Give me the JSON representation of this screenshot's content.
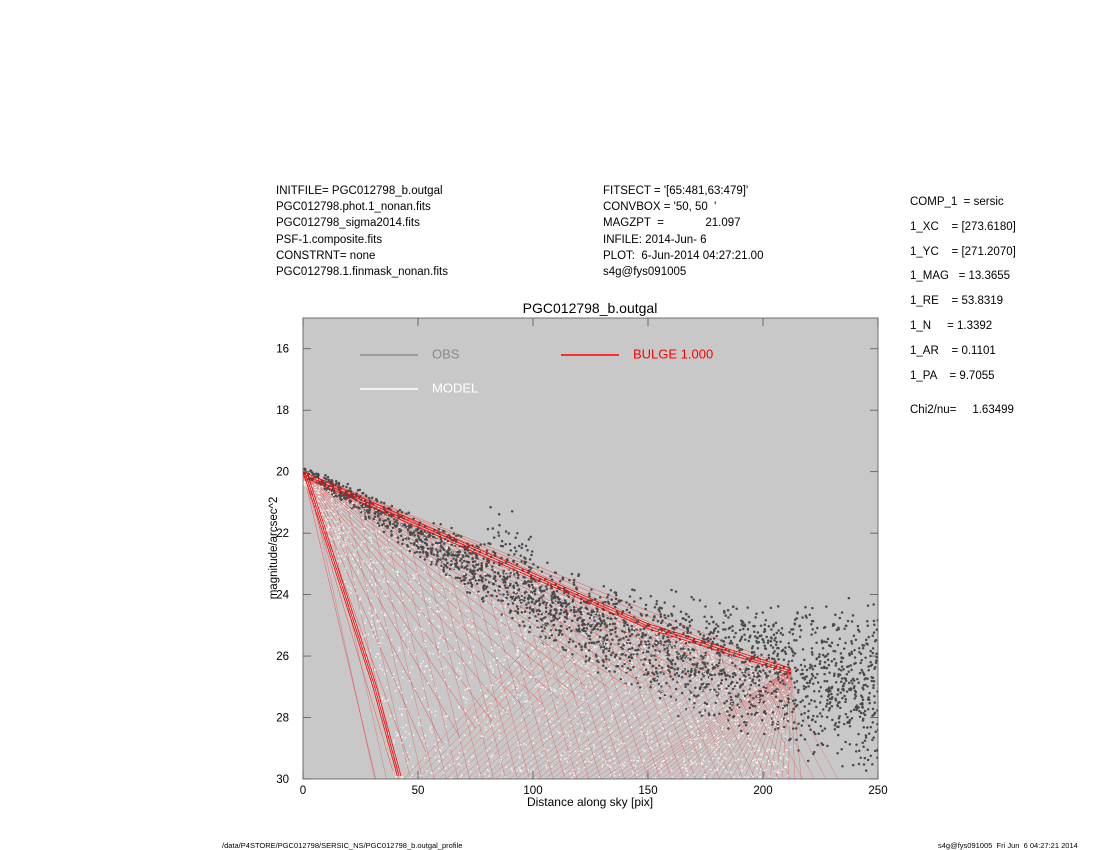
{
  "header": {
    "left": [
      "INITFILE= PGC012798_b.outgal",
      "PGC012798.phot.1_nonan.fits",
      "PGC012798_sigma2014.fits",
      "PSF-1.composite.fits",
      "CONSTRNT= none",
      "PGC012798.1.finmask_nonan.fits"
    ],
    "middle": [
      "FITSECT = '[65:481,63:479]'",
      "CONVBOX = '50, 50  '",
      "MAGZPT  =             21.097",
      "INFILE: 2014-Jun- 6",
      "PLOT:  6-Jun-2014 04:27:21.00",
      "s4g@fys091005"
    ]
  },
  "components": [
    "COMP_1  = sersic",
    "1_XC    = [273.6180]",
    "1_YC    = [271.2070]",
    "1_MAG   = 13.3655",
    "1_RE    = 53.8319",
    "1_N     = 1.3392",
    "1_AR    = 0.1101",
    "1_PA    = 9.7055"
  ],
  "chi2": "Chi2/nu=     1.63499",
  "footer": {
    "left": "/data/P4STORE/PGC012798/SERSIC_NS/PGC012798_b.outgal_profile",
    "right": "s4g@fys091005  Fri Jun  6 04:27:21 2014"
  },
  "colors": {
    "panel_bg": "#c8c8c8",
    "obs": "#4a4a4a",
    "obs_legend": "#8a8a8a",
    "model": "#ffffff",
    "bulge": "#ff0000"
  },
  "chart_data": {
    "type": "scatter",
    "title": "PGC012798_b.outgal",
    "xlabel": "Distance along sky [pix]",
    "ylabel": "magnitude/arcsec^2",
    "xlim": [
      0,
      250
    ],
    "ylim": [
      30,
      15
    ],
    "y_inverted": true,
    "x_ticks": [
      0,
      50,
      100,
      150,
      200,
      250
    ],
    "y_ticks": [
      16,
      18,
      20,
      22,
      24,
      26,
      28,
      30
    ],
    "legend": [
      "OBS",
      "MODEL",
      "BULGE  1.000"
    ],
    "series": [
      {
        "name": "OBS",
        "points": [
          [
            0,
            20.0
          ],
          [
            10,
            20.3
          ],
          [
            25,
            20.8
          ],
          [
            50,
            21.8
          ],
          [
            75,
            22.6
          ],
          [
            100,
            23.4
          ],
          [
            125,
            24.1
          ],
          [
            150,
            24.6
          ],
          [
            175,
            24.9
          ],
          [
            200,
            25.1
          ],
          [
            225,
            25.2
          ],
          [
            250,
            25.3
          ]
        ]
      },
      {
        "name": "MODEL",
        "points": [
          [
            0,
            20.0
          ],
          [
            50,
            22.2
          ],
          [
            100,
            23.6
          ],
          [
            150,
            24.8
          ],
          [
            200,
            26.0
          ],
          [
            212,
            26.3
          ]
        ]
      },
      {
        "name": "BULGE  1.000",
        "upper_envelope": [
          [
            0,
            20.0
          ],
          [
            50,
            21.65
          ],
          [
            100,
            23.3
          ],
          [
            150,
            24.95
          ],
          [
            212,
            26.4
          ]
        ],
        "lower_envelope": [
          [
            0,
            20.0
          ],
          [
            10,
            22.3
          ],
          [
            20,
            24.6
          ],
          [
            30,
            26.9
          ],
          [
            41,
            29.9
          ]
        ]
      }
    ]
  }
}
